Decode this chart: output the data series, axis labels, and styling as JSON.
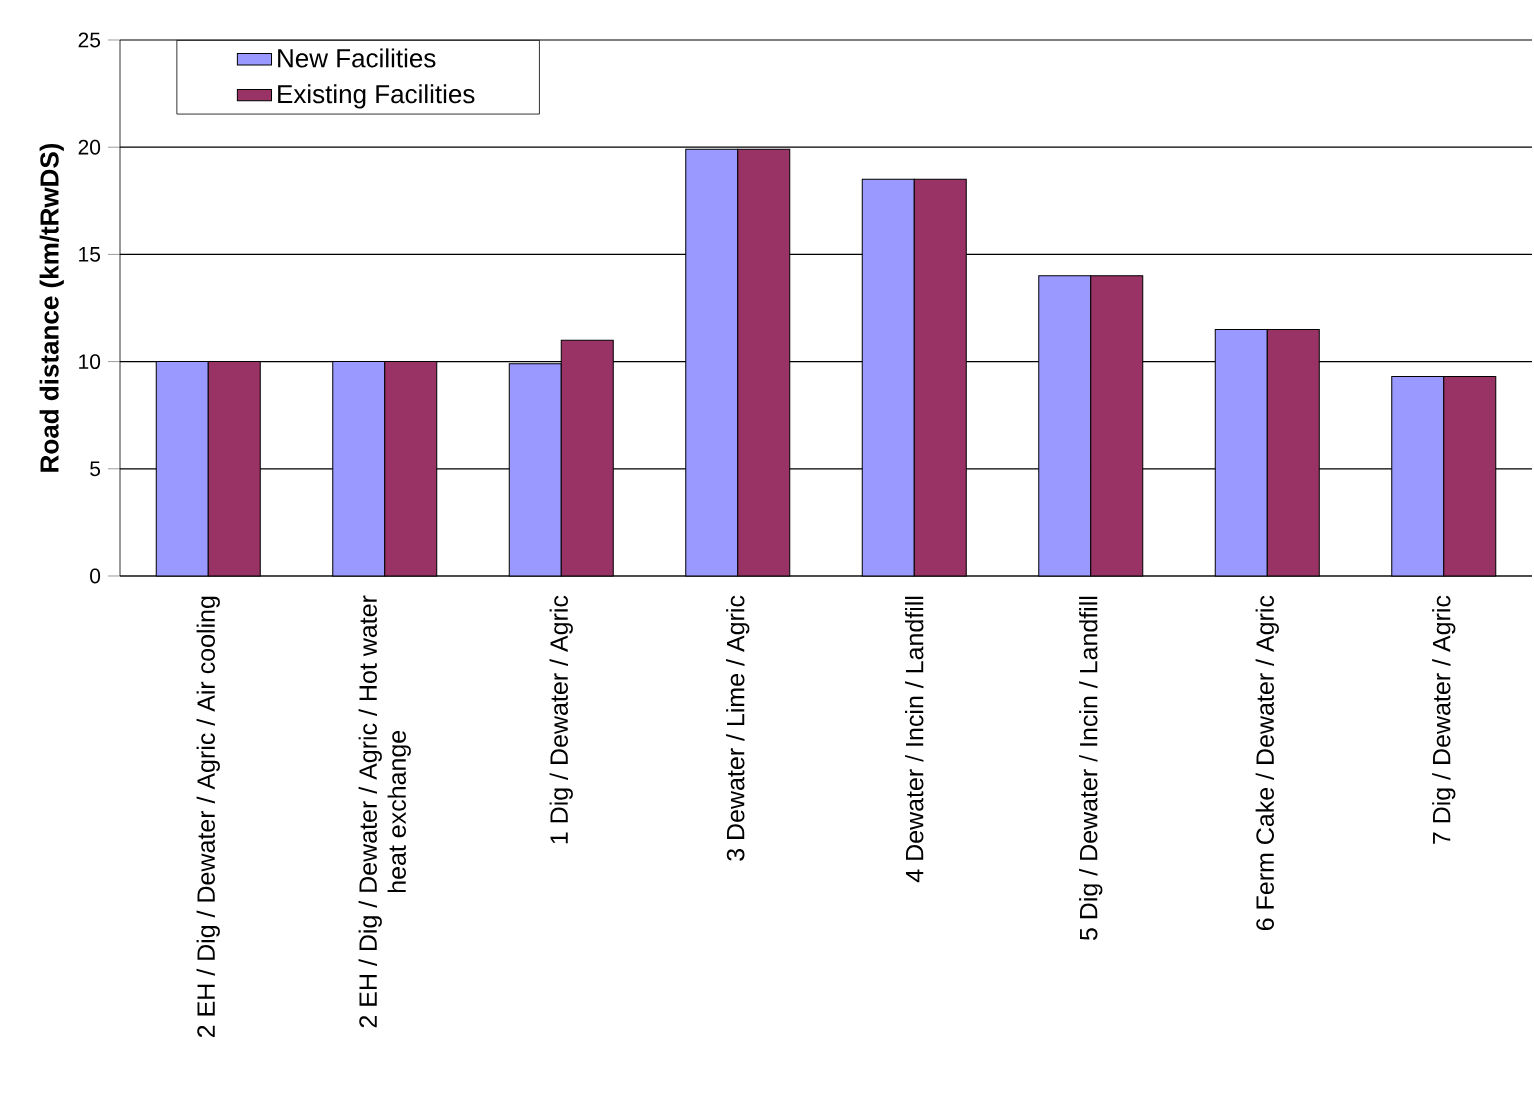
{
  "chart_data": {
    "type": "bar",
    "ylabel": "Road distance  (km/tRwDS)",
    "categories": [
      "2 EH / Dig / Dewater / Agric / Air cooling",
      "2 EH / Dig / Dewater / Agric / Hot water heat exchange",
      "1 Dig / Dewater / Agric",
      "3 Dewater / Lime / Agric",
      "4 Dewater / Incin / Landfill",
      "5 Dig / Dewater / Incin / Landfill",
      "6 Ferm Cake / Dewater / Agric",
      "7 Dig / Dewater / Agric"
    ],
    "series": [
      {
        "name": "New Facilities",
        "color": "#9999ff",
        "values": [
          10,
          10,
          9.9,
          19.9,
          18.5,
          14,
          11.5,
          9.3
        ]
      },
      {
        "name": "Existing Facilities",
        "color": "#993366",
        "values": [
          10,
          10,
          11,
          19.9,
          18.5,
          14,
          11.5,
          9.3
        ]
      }
    ],
    "ylim": [
      0,
      25
    ],
    "yticks": [
      0,
      5,
      10,
      15,
      20,
      25
    ],
    "grid": "y",
    "legend": "top left"
  }
}
